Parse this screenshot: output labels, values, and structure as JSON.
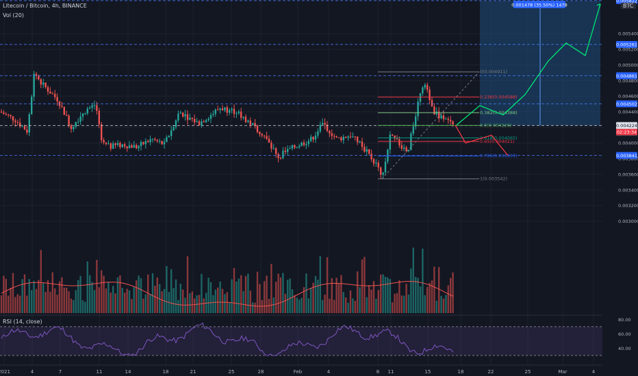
{
  "header": {
    "symbol": "Litecoin / Bitcoin, 4h, BINANCE",
    "vol_label": "Vol (20)",
    "rsi_label": "RSI (14, close)",
    "currency": "BTC"
  },
  "colors": {
    "background": "#131722",
    "up": "#26a69a",
    "down": "#ef5350",
    "fib": "#787b86",
    "projection_up": "#00e676",
    "projection_down": "#f23645",
    "measure_box": "#1e4d7a",
    "measure_line": "#2962ff",
    "rsi": "#7e57c2",
    "vol_ma": "#ef5350"
  },
  "chart_data": {
    "type": "candlestick",
    "symbol": "Litecoin / Bitcoin",
    "interval": "4h",
    "exchange": "BINANCE",
    "x_ticks": [
      "2021",
      "4",
      "7",
      "11",
      "14",
      "18",
      "21",
      "25",
      "28",
      "Feb",
      "4",
      "8",
      "11",
      "15",
      "18",
      "22",
      "25",
      "Mar",
      "4"
    ],
    "y_ticks": [
      0.0054,
      0.0052,
      0.005,
      0.0048,
      0.0046,
      0.0044,
      0.0042,
      0.004,
      0.0038,
      0.0036,
      0.0034,
      0.0032,
      0.003
    ],
    "ylim": [
      0.00283,
      0.00583
    ],
    "price_labels": [
      {
        "text": "0.005822",
        "value": 0.005822
      },
      {
        "text": "0.005261",
        "value": 0.005261
      },
      {
        "text": "0.004861",
        "value": 0.004861
      },
      {
        "text": "0.004502",
        "value": 0.004502
      },
      {
        "text": "0.004224",
        "value": 0.004224
      },
      {
        "text": "0.004212",
        "value": 0.004212
      },
      {
        "text": "0.003841",
        "value": 0.003841
      }
    ],
    "countdown": "02:23:34",
    "fibonacci": [
      {
        "level": "0",
        "value": 0.004911
      },
      {
        "level": "0.236",
        "value": 0.004588
      },
      {
        "level": "0.382",
        "value": 0.004388
      },
      {
        "level": "0.5",
        "value": 0.004226
      },
      {
        "level": "0.618",
        "value": 0.004065
      },
      {
        "level": "0.65",
        "value": 0.004021
      },
      {
        "level": "0.786",
        "value": 0.003835
      },
      {
        "level": "1",
        "value": 0.003542
      }
    ],
    "measure_label": "0.001478 (35.50%) 1478",
    "projection_up": [
      0.00423,
      0.00448,
      0.00436,
      0.00462,
      0.00505,
      0.00528,
      0.00512,
      0.00578
    ],
    "projection_down": [
      0.00423,
      0.004,
      0.0041,
      0.00384
    ],
    "rsi_ticks": [
      80,
      60,
      40
    ],
    "rsi_bands": [
      70,
      30
    ]
  }
}
